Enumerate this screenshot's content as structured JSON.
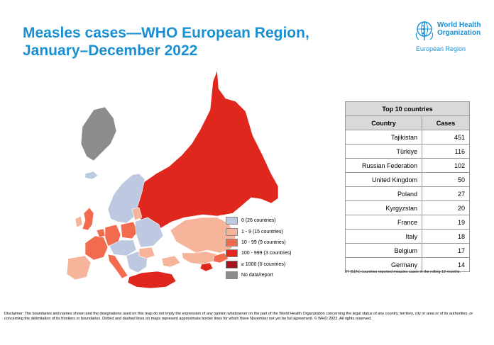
{
  "title": {
    "line1": "Measles cases—WHO European Region,",
    "line2": "January–December 2022"
  },
  "who": {
    "name_line1": "World Health",
    "name_line2": "Organization",
    "region": "European Region",
    "brand_color": "#1a8fd1"
  },
  "legend": [
    {
      "label": "0 (26 countries)",
      "color": "#bcc9e1"
    },
    {
      "label": "1 - 9 (15 countries)",
      "color": "#f6b49a"
    },
    {
      "label": "10 - 99 (9 countries)",
      "color": "#f26b4f"
    },
    {
      "label": "100 - 999 (3 countries)",
      "color": "#e0271e"
    },
    {
      "label": "≥ 1000 (0 countries)",
      "color": "#a0141a"
    },
    {
      "label": "No data/report",
      "color": "#8c8c8c"
    }
  ],
  "table": {
    "title": "Top 10 countries",
    "col_country": "Country",
    "col_cases": "Cases",
    "rows": [
      {
        "country": "Tajikistan",
        "cases": "451"
      },
      {
        "country": "Türkiye",
        "cases": "116"
      },
      {
        "country": "Russian Federation",
        "cases": "102"
      },
      {
        "country": "United Kingdom",
        "cases": "50"
      },
      {
        "country": "Poland",
        "cases": "27"
      },
      {
        "country": "Kyrgyzstan",
        "cases": "20"
      },
      {
        "country": "France",
        "cases": "19"
      },
      {
        "country": "Italy",
        "cases": "18"
      },
      {
        "country": "Belgium",
        "cases": "17"
      },
      {
        "country": "Germany",
        "cases": "14"
      }
    ]
  },
  "footnote": "27 (51%) countries reported measles cases in the rolling 12-months.",
  "disclaimer": "Disclaimer: The boundaries and names shown and the designations used on this map do not imply the expression of any opinion whatsoever on the part of the World Health Organization concerning the legal status of any country, territory, city or area or of its authorities, or concerning the delimitation of its frontiers or boundaries. Dotted and dashed lines on maps represent approximate border lines for which there November not yet be full agreement. © WHO 2023. All rights reserved."
}
